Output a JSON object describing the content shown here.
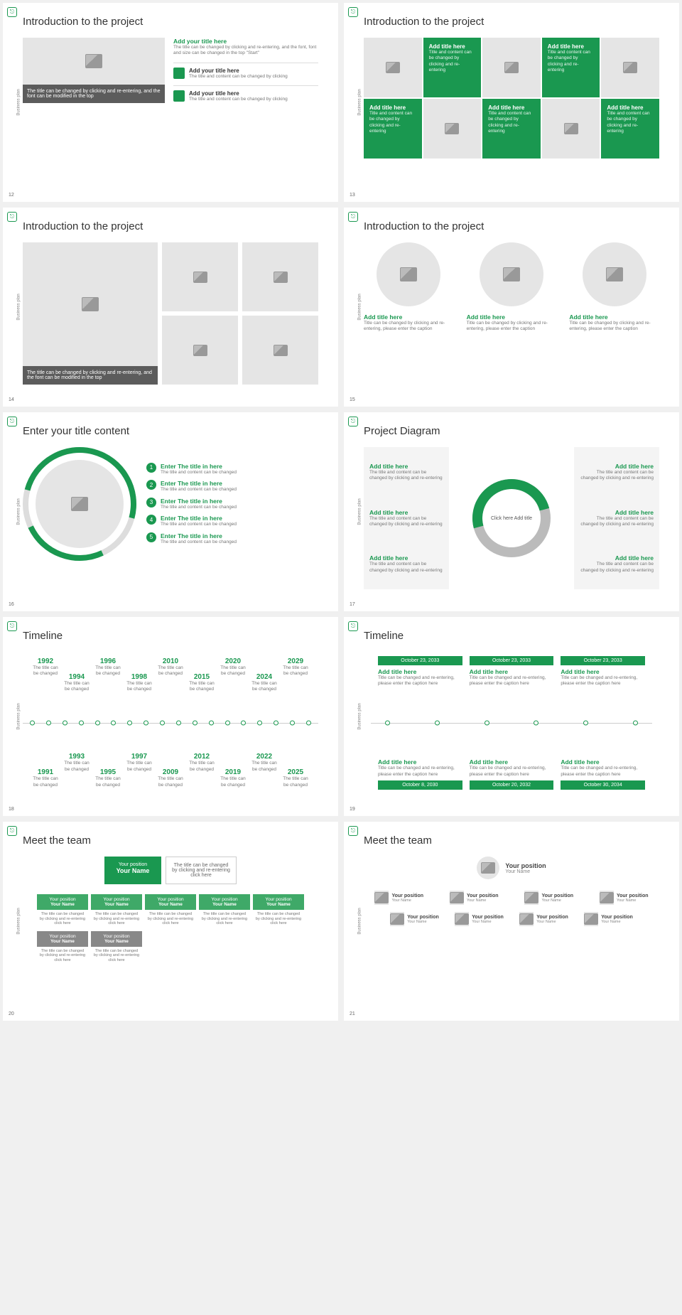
{
  "common": {
    "vlabel": "Business plan",
    "logo": "⎋",
    "accent": "#1a9850",
    "gray_bg": "#e5e5e5"
  },
  "s12": {
    "num": "12",
    "title": "Introduction to the project",
    "caption": "The title can be changed by clicking and re-entering, and the font can be modified in the top",
    "main_title": "Add your title here",
    "main_text": "The title can be changed by clicking and re-entering, and the font, font and size can be changed in the top \"Start\"",
    "items": [
      {
        "title": "Add your title here",
        "text": "The title and content can be changed by clicking"
      },
      {
        "title": "Add your title here",
        "text": "The title and content can be changed by clicking"
      }
    ]
  },
  "s13": {
    "num": "13",
    "title": "Introduction to the project",
    "cells": [
      {
        "green": false
      },
      {
        "green": true,
        "title": "Add title here",
        "text": "Title and content can be changed by clicking and re-entering"
      },
      {
        "green": false
      },
      {
        "green": true,
        "title": "Add title here",
        "text": "Title and content can be changed by clicking and re-entering"
      },
      {
        "green": false
      },
      {
        "green": true,
        "title": "Add title here",
        "text": "Title and content can be changed by clicking and re-entering"
      },
      {
        "green": false
      },
      {
        "green": true,
        "title": "Add title here",
        "text": "Title and content can be changed by clicking and re-entering"
      },
      {
        "green": false
      },
      {
        "green": true,
        "title": "Add title here",
        "text": "Title and content can be changed by clicking and re-entering"
      }
    ],
    "order": [
      0,
      1,
      2,
      3,
      4,
      5,
      6,
      7
    ]
  },
  "s14": {
    "num": "14",
    "title": "Introduction to the project",
    "caption": "The title can be changed by clicking and re-entering, and the font can be modified in the top"
  },
  "s15": {
    "num": "15",
    "title": "Introduction to the project",
    "cols": [
      {
        "title": "Add title here",
        "text": "Title can be changed by clicking and re-entering, please enter the caption"
      },
      {
        "title": "Add title here",
        "text": "Title can be changed by clicking and re-entering, please enter the caption"
      },
      {
        "title": "Add title here",
        "text": "Title can be changed by clicking and re-entering, please enter the caption"
      }
    ]
  },
  "s16": {
    "num": "16",
    "title": "Enter your title content",
    "items": [
      {
        "n": "1",
        "title": "Enter The title in here",
        "text": "The title and content can be changed"
      },
      {
        "n": "2",
        "title": "Enter The title in here",
        "text": "The title and content can be changed"
      },
      {
        "n": "3",
        "title": "Enter The title in here",
        "text": "The title and content can be changed"
      },
      {
        "n": "4",
        "title": "Enter The title in here",
        "text": "The title and content can be changed"
      },
      {
        "n": "5",
        "title": "Enter The title in here",
        "text": "The title and content can be changed"
      }
    ]
  },
  "s17": {
    "num": "17",
    "title": "Project Diagram",
    "center": "Click here\nAdd title",
    "left": [
      {
        "title": "Add title here",
        "text": "The title and content can be changed by clicking and re-entering"
      },
      {
        "title": "Add title here",
        "text": "The title and content can be changed by clicking and re-entering"
      },
      {
        "title": "Add title here",
        "text": "The title and content can be changed by clicking and re-entering"
      }
    ],
    "right": [
      {
        "title": "Add title here",
        "text": "The title and content can be changed by clicking and re-entering"
      },
      {
        "title": "Add title here",
        "text": "The title and content can be changed by clicking and re-entering"
      },
      {
        "title": "Add title here",
        "text": "The title and content can be changed by clicking and re-entering"
      }
    ]
  },
  "s18": {
    "num": "18",
    "title": "Timeline",
    "sub": "The title can be changed",
    "top": [
      "1992",
      "1994",
      "1996",
      "1998",
      "2010",
      "2015",
      "2020",
      "2024",
      "2029"
    ],
    "bot": [
      "1991",
      "1993",
      "1995",
      "1997",
      "2009",
      "2012",
      "2019",
      "2022",
      "2025"
    ]
  },
  "s19": {
    "num": "19",
    "title": "Timeline",
    "top": [
      {
        "d": "October 23, 2033",
        "t": "Add title here",
        "x": "Title can be changed and re-entering, please enter the caption here"
      },
      {
        "d": "October 23, 2033",
        "t": "Add title here",
        "x": "Title can be changed and re-entering, please enter the caption here"
      },
      {
        "d": "October 23, 2033",
        "t": "Add title here",
        "x": "Title can be changed and re-entering, please enter the caption here"
      }
    ],
    "bot": [
      {
        "d": "October 8, 2030",
        "t": "Add title here",
        "x": "Title can be changed and re-entering, please enter the caption here"
      },
      {
        "d": "October 20, 2032",
        "t": "Add title here",
        "x": "Title can be changed and re-entering, please enter the caption here"
      },
      {
        "d": "October 30, 2034",
        "t": "Add title here",
        "x": "Title can be changed and re-entering, please enter the caption here"
      }
    ]
  },
  "s20": {
    "num": "20",
    "title": "Meet the team",
    "top_pos": "Your position",
    "top_name": "Your Name",
    "top_note": "The title can be changed by clicking and re-entering click here",
    "row1": [
      {
        "p": "Your position",
        "n": "Your Name"
      },
      {
        "p": "Your position",
        "n": "Your Name"
      },
      {
        "p": "Your position",
        "n": "Your Name"
      },
      {
        "p": "Your position",
        "n": "Your Name"
      },
      {
        "p": "Your position",
        "n": "Your Name"
      }
    ],
    "row2": [
      {
        "p": "Your position",
        "n": "Your Name"
      },
      {
        "p": "Your position",
        "n": "Your Name"
      }
    ],
    "card_sub": "The title can be changed by clicking and re-entering click here"
  },
  "s21": {
    "num": "21",
    "title": "Meet the team",
    "top": {
      "p": "Your position",
      "n": "Your Name"
    },
    "row1": [
      {
        "p": "Your position",
        "n": "Your Name"
      },
      {
        "p": "Your position",
        "n": "Your Name"
      },
      {
        "p": "Your position",
        "n": "Your Name"
      },
      {
        "p": "Your position",
        "n": "Your Name"
      }
    ],
    "row2": [
      {
        "p": "Your position",
        "n": "Your Name"
      },
      {
        "p": "Your position",
        "n": "Your Name"
      },
      {
        "p": "Your position",
        "n": "Your Name"
      },
      {
        "p": "Your position",
        "n": "Your Name"
      }
    ]
  }
}
